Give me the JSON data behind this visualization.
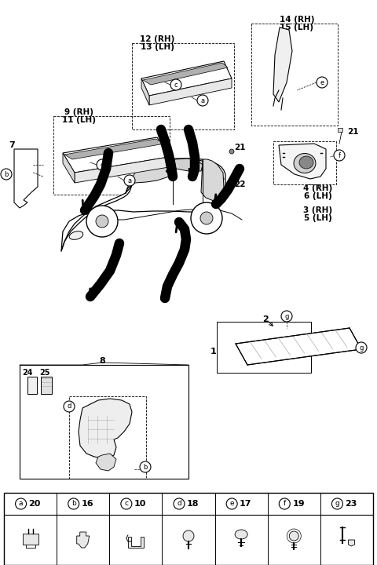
{
  "bg_color": "#ffffff",
  "fig_width": 4.8,
  "fig_height": 7.2,
  "dpi": 100,
  "legend_items": [
    {
      "label": "a",
      "num": "20"
    },
    {
      "label": "b",
      "num": "16"
    },
    {
      "label": "c",
      "num": "10"
    },
    {
      "label": "d",
      "num": "18"
    },
    {
      "label": "e",
      "num": "17"
    },
    {
      "label": "f",
      "num": "19"
    },
    {
      "label": "g",
      "num": "23"
    }
  ],
  "car_body": {
    "body_x": [
      75,
      80,
      95,
      115,
      140,
      158,
      163,
      170,
      182,
      200,
      218,
      238,
      255,
      268,
      278,
      288,
      295,
      300,
      305,
      308,
      308,
      305,
      298,
      285,
      270,
      248,
      218,
      190,
      165,
      145,
      118,
      98,
      82,
      75
    ],
    "body_y": [
      310,
      298,
      282,
      268,
      255,
      245,
      238,
      225,
      215,
      208,
      205,
      203,
      203,
      205,
      208,
      213,
      218,
      223,
      230,
      240,
      265,
      275,
      280,
      282,
      282,
      281,
      280,
      281,
      282,
      280,
      278,
      285,
      300,
      310
    ]
  }
}
